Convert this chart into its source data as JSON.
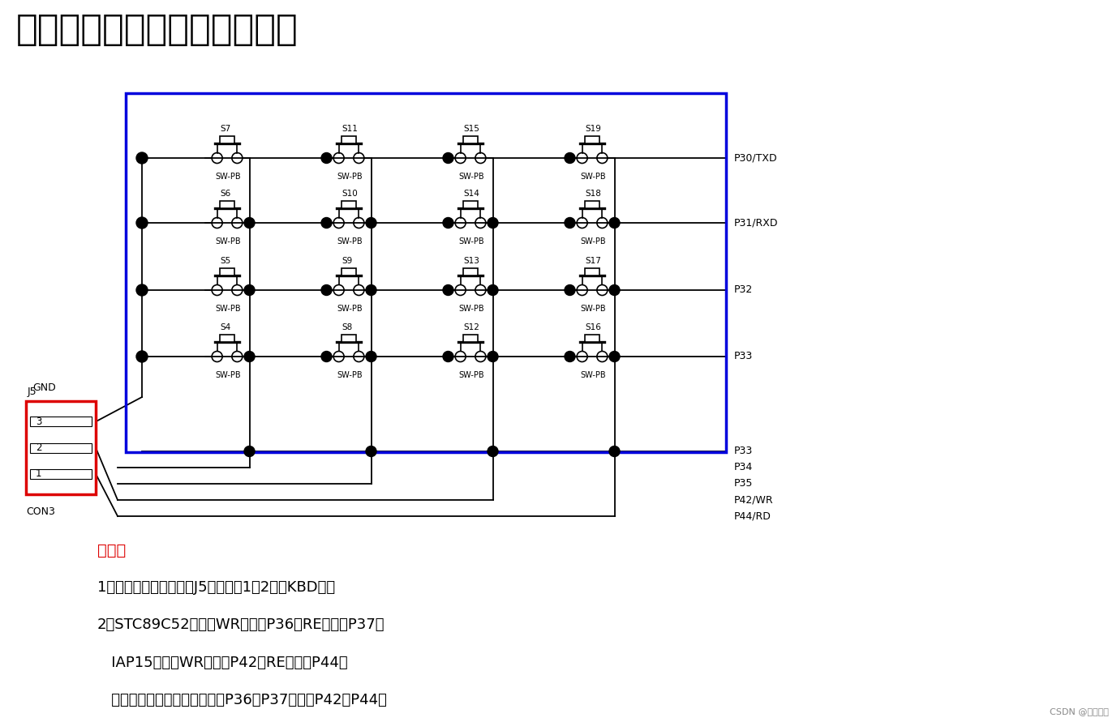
{
  "title": "蓝桥杯矩阵键盘的三行代码法",
  "title_fontsize": 32,
  "bg_color": "#ffffff",
  "note_title": "注意：",
  "note_line1": "1、做矩阵键盘使用时，J5跳帽短接1和2针（KBD）。",
  "note_line2": "2、STC89C52芯片中WR引脚是P36，RE引脚是P37；",
  "note_line3": "   IAP15芯片中WR引脚是P42，RE引脚是P44；",
  "note_line4": "   所以用行列扫描法的时候要将P36，P37映射到P42、P44。",
  "row_labels": [
    "P30/TXD",
    "P31/RXD",
    "P32",
    "P33"
  ],
  "col_labels": [
    "P34",
    "P35",
    "P42/WR",
    "P44/RD"
  ],
  "switch_labels_row0": [
    "S7",
    "S11",
    "S15",
    "S19"
  ],
  "switch_labels_row1": [
    "S6",
    "S10",
    "S14",
    "S18"
  ],
  "switch_labels_row2": [
    "S5",
    "S9",
    "S13",
    "S17"
  ],
  "switch_labels_row3": [
    "S4",
    "S8",
    "S12",
    "S16"
  ],
  "watermark": "CSDN @竹烟淮雨",
  "blue_color": "#0000dd",
  "red_color": "#dd0000",
  "black": "#000000"
}
